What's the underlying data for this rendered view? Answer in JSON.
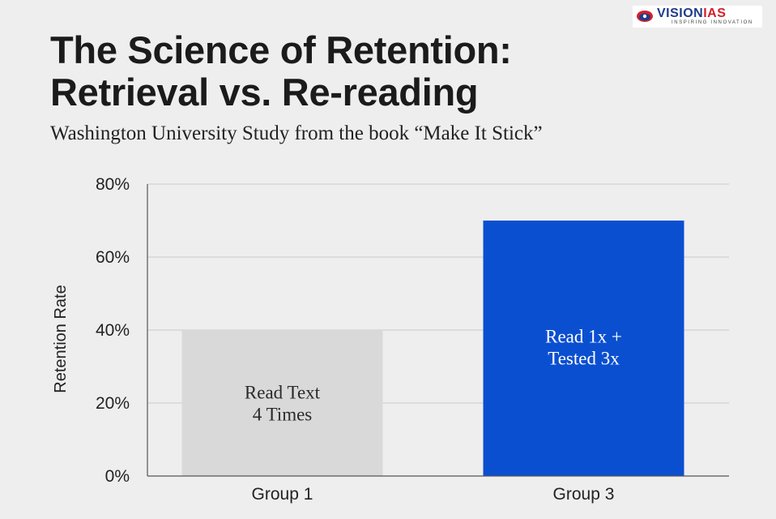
{
  "header": {
    "title_line1": "The Science of Retention:",
    "title_line2": "Retrieval vs. Re-reading",
    "subtitle": "Washington University Study from the book “Make It Stick”"
  },
  "logo": {
    "name_main": "VISION",
    "name_accent": "IAS",
    "tagline": "INSPIRING INNOVATION"
  },
  "chart_data": {
    "type": "bar",
    "title": "The Science of Retention: Retrieval vs. Re-reading",
    "ylabel": "Retention Rate",
    "xlabel": "",
    "ylim": [
      0,
      80
    ],
    "y_ticks": [
      0,
      20,
      40,
      60,
      80
    ],
    "y_tick_labels": [
      "0%",
      "20%",
      "40%",
      "60%",
      "80%"
    ],
    "grid": true,
    "categories": [
      "Group 1",
      "Group 3"
    ],
    "values": [
      40,
      70
    ],
    "bar_labels": [
      [
        "Read Text",
        "4 Times"
      ],
      [
        "Read 1x +",
        "Tested 3x"
      ]
    ],
    "colors": [
      "#d9d9d9",
      "#0b4fd1"
    ],
    "label_colors": [
      "#2a2a2a",
      "#ffffff"
    ]
  }
}
